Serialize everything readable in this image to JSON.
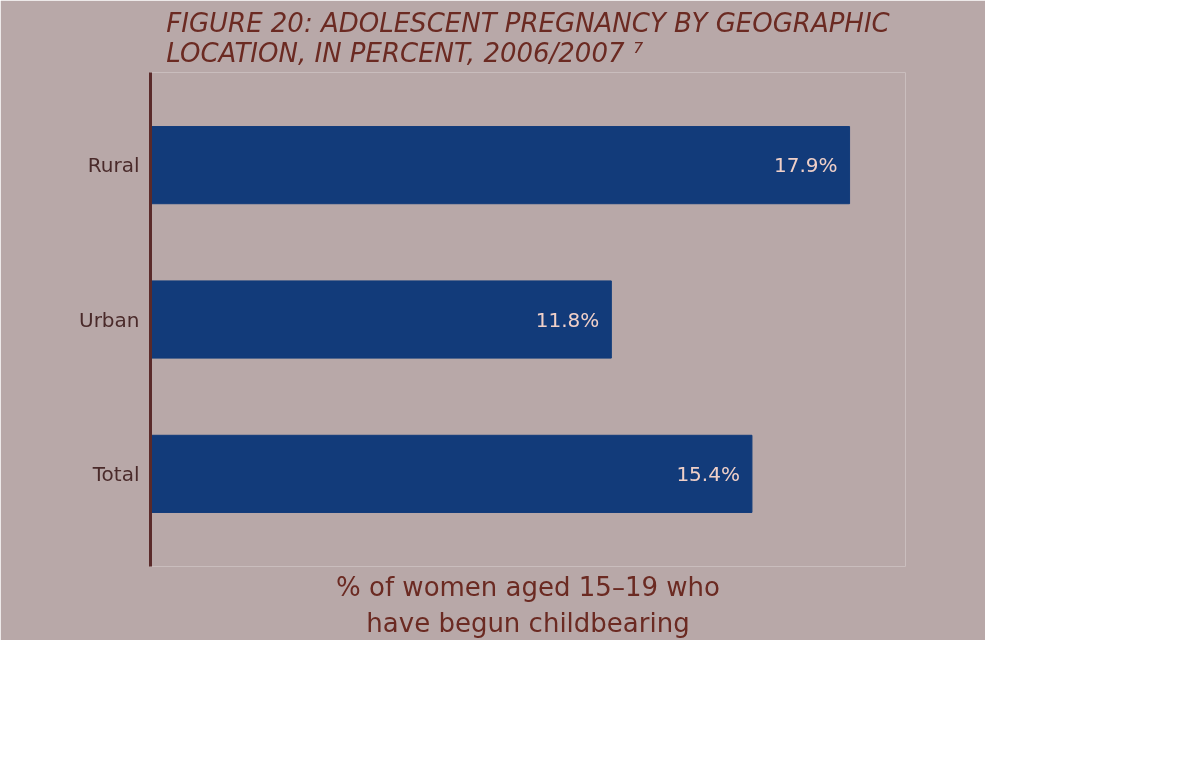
{
  "chart_data": {
    "type": "bar",
    "orientation": "horizontal",
    "title": "FIGURE 20: ADOLESCENT PREGNANCY BY GEOGRAPHIC LOCATION, IN PERCENT, 2006/2007 ⁷",
    "xlabel": "% of women aged 15–19 who have begun childbearing",
    "categories": [
      "Rural",
      "Urban",
      "Total"
    ],
    "values": [
      17.9,
      11.8,
      15.4
    ],
    "value_labels": [
      "17.9%",
      "11.8%",
      "15.4%"
    ],
    "color": "#123b7a",
    "grid": false
  }
}
